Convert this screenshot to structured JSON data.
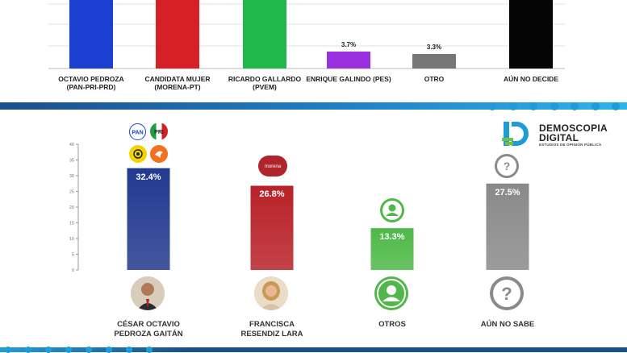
{
  "top_chart": {
    "categories": [
      "OCTAVIO PEDROZA\n(PAN-PRI-PRD)",
      "CANDIDATA MUJER\n(MORENA-PT)",
      "RICARDO GALLARDO\n(PVEM)",
      "ENRIQUE GALINDO (PES)",
      "OTRO",
      "AÚN NO DECIDE"
    ],
    "value_labels": [
      "",
      "",
      "",
      "3.7%",
      "3.3%",
      ""
    ],
    "colors": [
      "#1a3fd1",
      "#d61f26",
      "#1fb84a",
      "#9b30e0",
      "#777777",
      "#050505"
    ]
  },
  "logo": {
    "line1": "DEMOSCOPIA",
    "line2": "DIGITAL",
    "tagline": "ESTUDIOS DE OPINIÓN PÚBLICA"
  },
  "party_logos": {
    "pan": "PAN",
    "pri": "PRI",
    "morena": "morena"
  },
  "chart_data": {
    "type": "bar",
    "categories": [
      "CÉSAR OCTAVIO\nPEDROZA GAITÁN",
      "FRANCISCA\nRESENDIZ LARA",
      "OTROS",
      "AÚN NO SABE"
    ],
    "values": [
      32.4,
      26.8,
      13.3,
      27.5
    ],
    "value_labels": [
      "32.4%",
      "26.8%",
      "13.3%",
      "27.5%"
    ],
    "ylim": [
      0,
      40
    ],
    "yticks": [
      "0",
      "5",
      "10",
      "15",
      "20",
      "25",
      "30",
      "35",
      "40"
    ],
    "colors": [
      "#22398f",
      "#b82228",
      "#4fb848",
      "#8a8a8a"
    ],
    "icons": [
      "person-photo",
      "person-photo",
      "user-icon",
      "question-icon"
    ]
  }
}
